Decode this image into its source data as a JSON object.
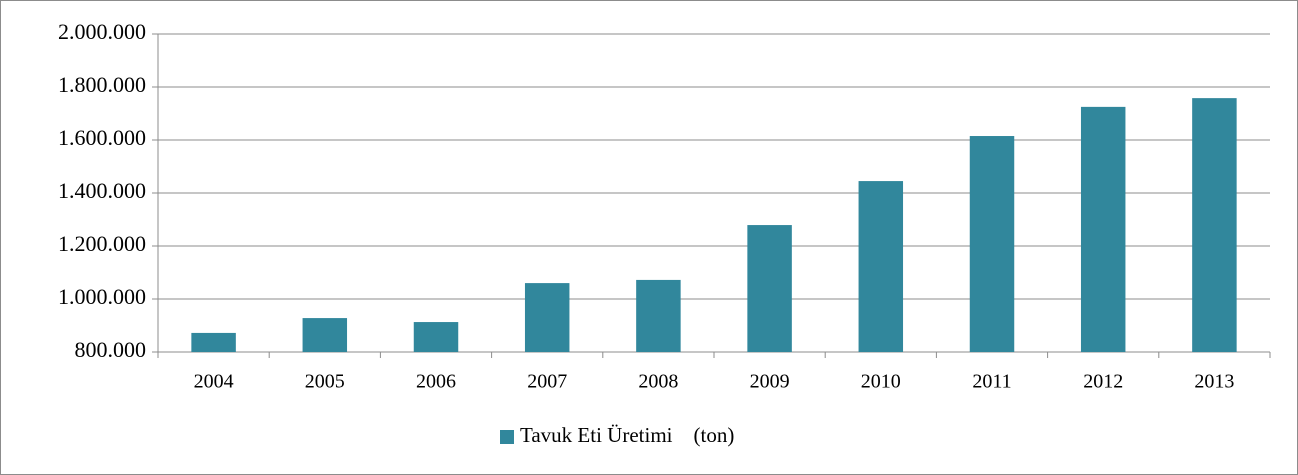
{
  "chart_data": {
    "type": "bar",
    "categories": [
      "2004",
      "2005",
      "2006",
      "2007",
      "2008",
      "2009",
      "2010",
      "2011",
      "2012",
      "2013"
    ],
    "series": [
      {
        "name": "Tavuk Eti Üretimi    (ton)",
        "color": "#31879c",
        "values": [
          872000,
          928000,
          913000,
          1060000,
          1072000,
          1279000,
          1445000,
          1615000,
          1725000,
          1758000
        ]
      }
    ],
    "ylim": [
      800000,
      2000000
    ],
    "yticks": [
      {
        "value": 800000,
        "label": "800.000"
      },
      {
        "value": 1000000,
        "label": "1.000.000"
      },
      {
        "value": 1200000,
        "label": "1.200.000"
      },
      {
        "value": 1400000,
        "label": "1.400.000"
      },
      {
        "value": 1600000,
        "label": "1.600.000"
      },
      {
        "value": 1800000,
        "label": "1.800.000"
      },
      {
        "value": 2000000,
        "label": "2.000.000"
      }
    ],
    "grid": true,
    "legend": "bottom"
  }
}
